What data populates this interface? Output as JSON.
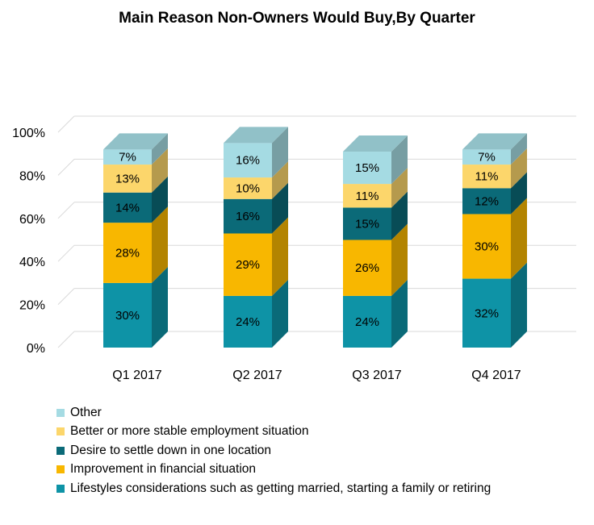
{
  "chart_data": {
    "type": "bar",
    "stacked": true,
    "title": "Main Reason Non-Owners Would Buy,By Quarter",
    "xlabel": "",
    "ylabel": "",
    "ylim": [
      0,
      100
    ],
    "yticks": [
      "0%",
      "20%",
      "40%",
      "60%",
      "80%",
      "100%"
    ],
    "categories": [
      "Q1 2017",
      "Q2 2017",
      "Q3 2017",
      "Q4 2017"
    ],
    "series": [
      {
        "name": "Lifestyles considerations such as getting married, starting a family or retiring",
        "color": "#0e93a6",
        "values": [
          30,
          24,
          24,
          32
        ],
        "labels": [
          "30%",
          "24%",
          "24%",
          "32%"
        ]
      },
      {
        "name": "Improvement in financial situation",
        "color": "#f8b700",
        "values": [
          28,
          29,
          26,
          30
        ],
        "labels": [
          "28%",
          "29%",
          "26%",
          "30%"
        ]
      },
      {
        "name": "Desire to settle down in one location",
        "color": "#0b6a78",
        "values": [
          14,
          16,
          15,
          12
        ],
        "labels": [
          "14%",
          "16%",
          "15%",
          "12%"
        ]
      },
      {
        "name": "Better or more stable employment situation",
        "color": "#fcd66b",
        "values": [
          13,
          10,
          11,
          11
        ],
        "labels": [
          "13%",
          "10%",
          "11%",
          "11%"
        ]
      },
      {
        "name": "Other",
        "color": "#a5dbe3",
        "values": [
          7,
          16,
          15,
          7
        ],
        "labels": [
          "7%",
          "16%",
          "15%",
          "7%"
        ]
      }
    ],
    "legend_position": "bottom",
    "grid": true
  }
}
